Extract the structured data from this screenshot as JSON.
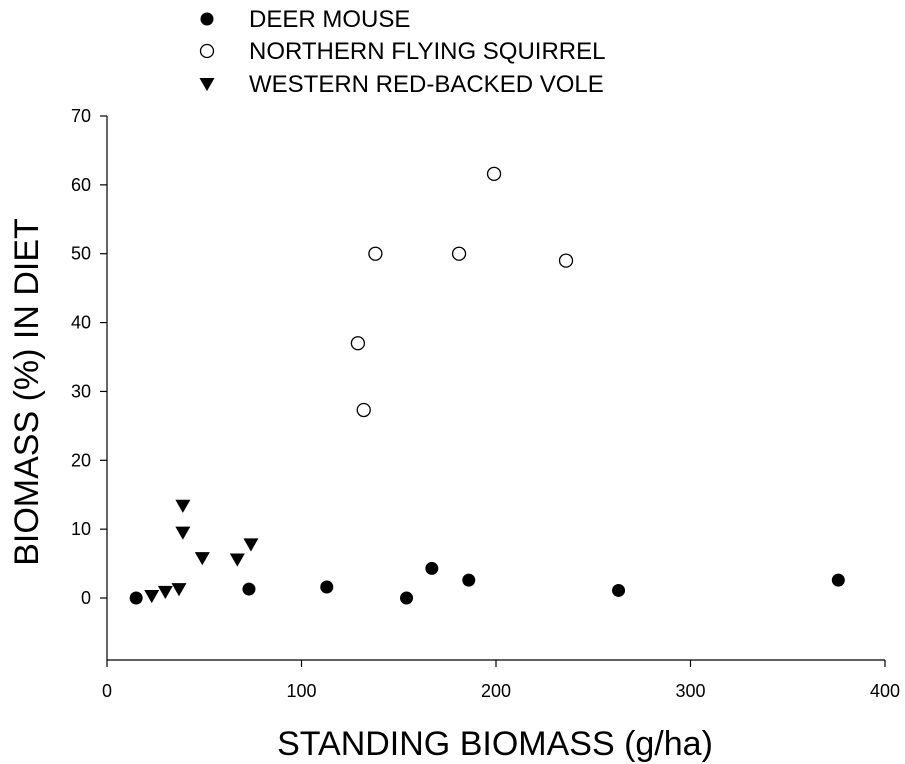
{
  "chart_data": {
    "type": "scatter",
    "title": "",
    "xlabel": "STANDING BIOMASS (g/ha)",
    "ylabel": "BIOMASS (%) IN DIET",
    "xlim": [
      0,
      400
    ],
    "ylim": [
      -9,
      70
    ],
    "xticks": [
      0,
      100,
      200,
      300,
      400
    ],
    "yticks": [
      0,
      10,
      20,
      30,
      40,
      50,
      60,
      70
    ],
    "grid": false,
    "legend_position": "top-left, above plot",
    "series": [
      {
        "name": "DEER MOUSE",
        "marker": "filled-circle",
        "color": "#000000",
        "points": [
          {
            "x": 15,
            "y": 0
          },
          {
            "x": 73,
            "y": 1.3
          },
          {
            "x": 113,
            "y": 1.6
          },
          {
            "x": 154,
            "y": 0
          },
          {
            "x": 167,
            "y": 4.3
          },
          {
            "x": 186,
            "y": 2.6
          },
          {
            "x": 263,
            "y": 1.1
          },
          {
            "x": 376,
            "y": 2.6
          }
        ]
      },
      {
        "name": "NORTHERN FLYING SQUIRREL",
        "marker": "open-circle",
        "color": "#000000",
        "points": [
          {
            "x": 129,
            "y": 37
          },
          {
            "x": 132,
            "y": 27.3
          },
          {
            "x": 138,
            "y": 50
          },
          {
            "x": 181,
            "y": 50
          },
          {
            "x": 199,
            "y": 61.6
          },
          {
            "x": 236,
            "y": 49
          }
        ]
      },
      {
        "name": "WESTERN RED-BACKED VOLE",
        "marker": "filled-triangle-down",
        "color": "#000000",
        "points": [
          {
            "x": 23,
            "y": 0.3
          },
          {
            "x": 30,
            "y": 0.9
          },
          {
            "x": 37,
            "y": 1.3
          },
          {
            "x": 39,
            "y": 13.4
          },
          {
            "x": 39,
            "y": 9.5
          },
          {
            "x": 49,
            "y": 5.8
          },
          {
            "x": 67,
            "y": 5.6
          },
          {
            "x": 74,
            "y": 7.8
          }
        ]
      }
    ]
  }
}
